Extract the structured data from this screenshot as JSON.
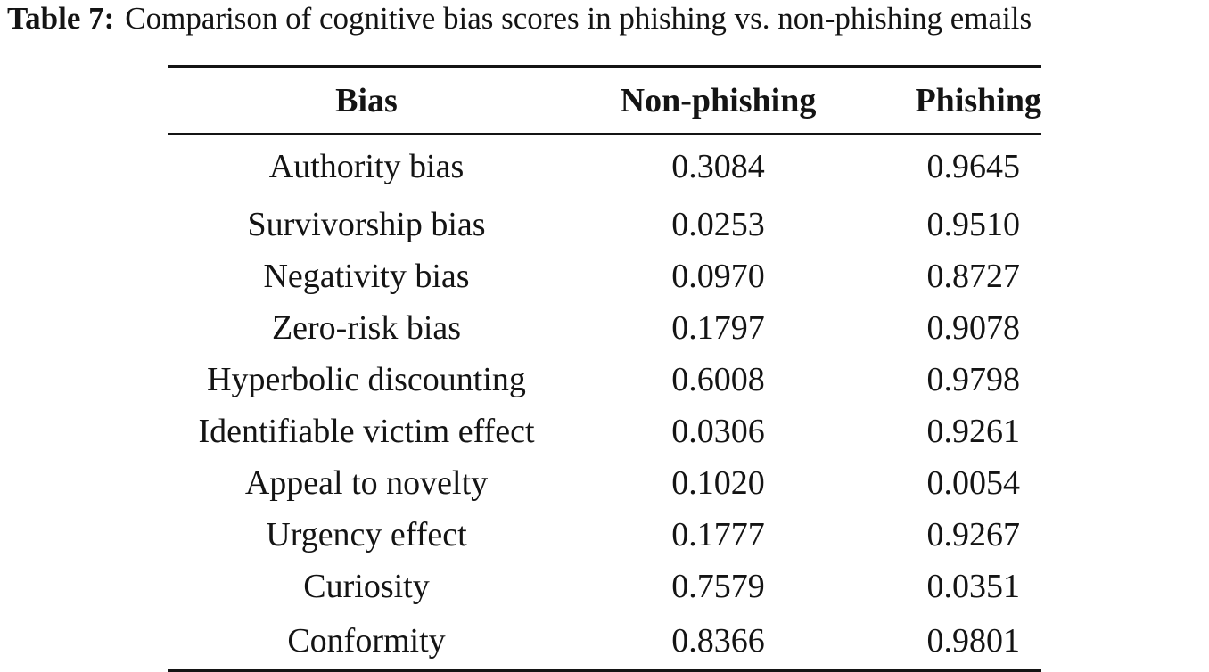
{
  "caption": {
    "label": "Table 7:",
    "text": "Comparison of cognitive bias scores in phishing vs. non-phishing emails"
  },
  "table": {
    "headers": [
      "Bias",
      "Non-phishing",
      "Phishing"
    ],
    "rows": [
      {
        "bias": "Authority bias",
        "non_phishing": "0.3084",
        "phishing": "0.9645"
      },
      {
        "bias": "Survivorship bias",
        "non_phishing": "0.0253",
        "phishing": "0.9510"
      },
      {
        "bias": "Negativity bias",
        "non_phishing": "0.0970",
        "phishing": "0.8727"
      },
      {
        "bias": "Zero-risk bias",
        "non_phishing": "0.1797",
        "phishing": "0.9078"
      },
      {
        "bias": "Hyperbolic discounting",
        "non_phishing": "0.6008",
        "phishing": "0.9798"
      },
      {
        "bias": "Identifiable victim effect",
        "non_phishing": "0.0306",
        "phishing": "0.9261"
      },
      {
        "bias": "Appeal to novelty",
        "non_phishing": "0.1020",
        "phishing": "0.0054"
      },
      {
        "bias": "Urgency effect",
        "non_phishing": "0.1777",
        "phishing": "0.9267"
      },
      {
        "bias": "Curiosity",
        "non_phishing": "0.7579",
        "phishing": "0.0351"
      },
      {
        "bias": "Conformity",
        "non_phishing": "0.8366",
        "phishing": "0.9801"
      }
    ]
  }
}
